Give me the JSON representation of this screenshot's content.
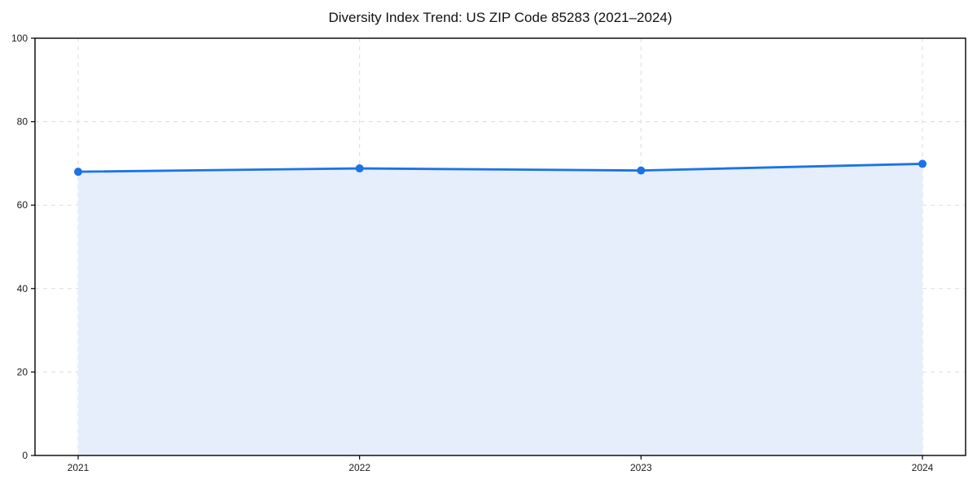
{
  "chart_data": {
    "type": "area",
    "title": "Diversity Index Trend: US ZIP Code 85283 (2021–2024)",
    "categories": [
      "2021",
      "2022",
      "2023",
      "2024"
    ],
    "values": [
      68.0,
      68.8,
      68.3,
      69.9
    ],
    "xlabel": "",
    "ylabel": "",
    "ylim": [
      0,
      100
    ],
    "yticks": [
      0,
      20,
      40,
      60,
      80,
      100
    ],
    "grid": "dashed-both-axes",
    "legend": "none",
    "colors": {
      "line": "#1a73e8",
      "marker": "#1a73e8",
      "fill": "#e6eefb",
      "grid": "#dcdcdc",
      "spine": "#000000",
      "tick_text": "#1a1a1a",
      "background": "#ffffff"
    }
  }
}
